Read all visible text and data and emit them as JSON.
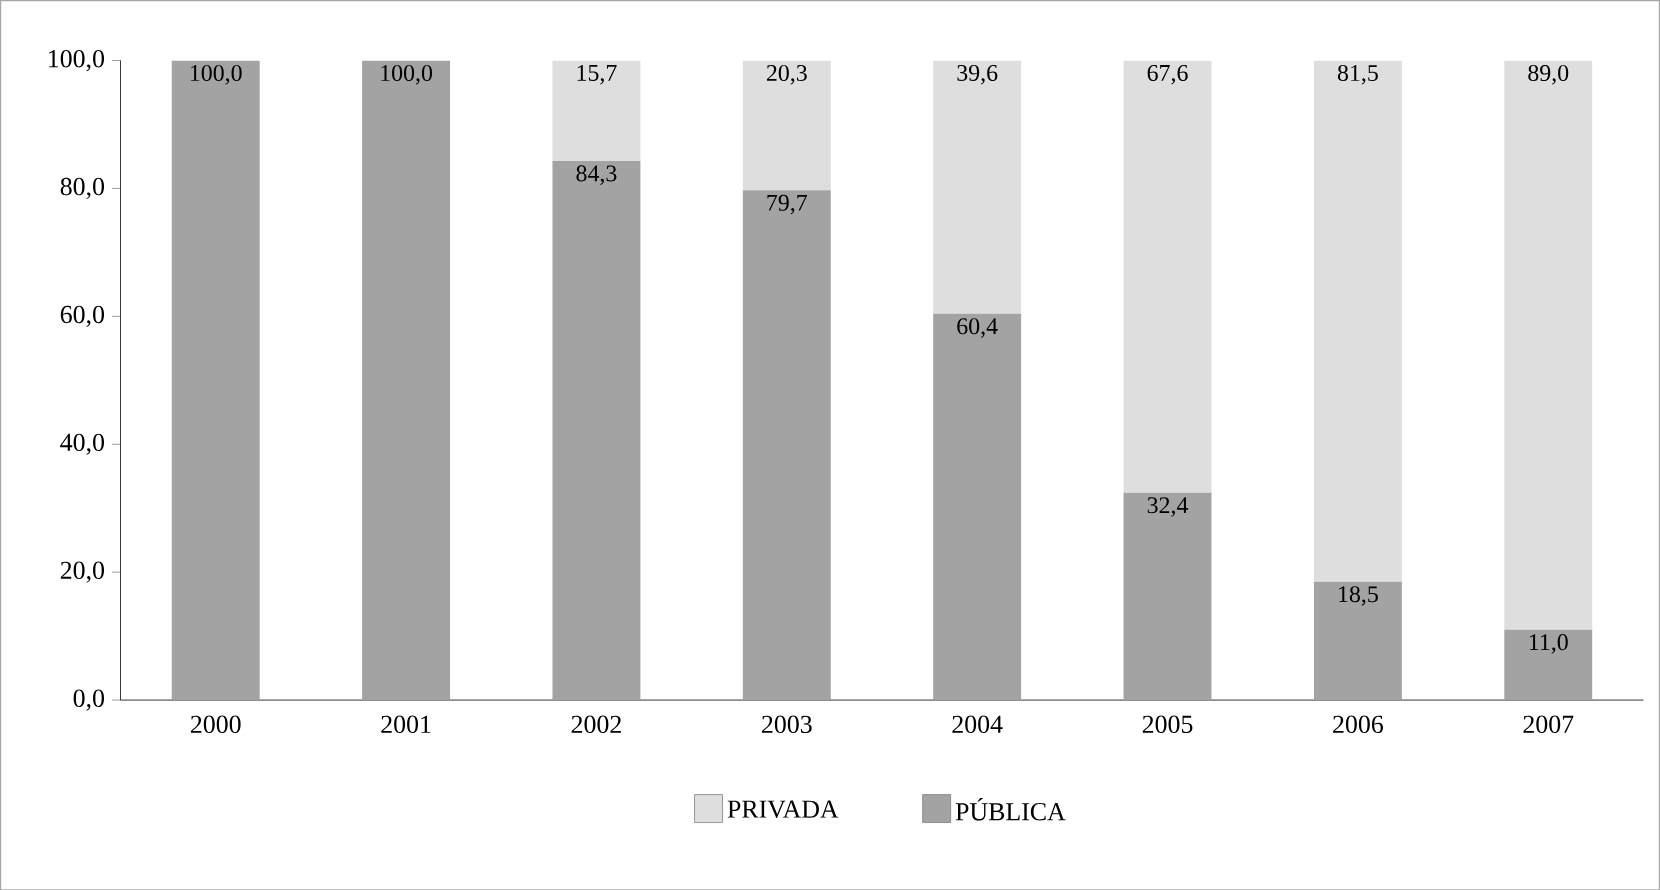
{
  "chart_data": {
    "type": "bar",
    "stacked": true,
    "categories": [
      "2000",
      "2001",
      "2002",
      "2003",
      "2004",
      "2005",
      "2006",
      "2007"
    ],
    "series": [
      {
        "name": "PÚBLICA",
        "color": "#a3a3a3",
        "values": [
          100.0,
          100.0,
          84.3,
          79.7,
          60.4,
          32.4,
          18.5,
          11.0
        ],
        "value_labels": [
          "100,0",
          "100,0",
          "84,3",
          "79,7",
          "60,4",
          "32,4",
          "18,5",
          "11,0"
        ]
      },
      {
        "name": "PRIVADA",
        "color": "#dedede",
        "values": [
          0,
          0,
          15.7,
          20.3,
          39.6,
          67.6,
          81.5,
          89.0
        ],
        "value_labels": [
          null,
          null,
          "15,7",
          "20,3",
          "39,6",
          "67,6",
          "81,5",
          "89,0"
        ]
      }
    ],
    "ylim": [
      0,
      100
    ],
    "yticks": [
      {
        "value": 0,
        "label": "0,0"
      },
      {
        "value": 20,
        "label": "20,0"
      },
      {
        "value": 40,
        "label": "40,0"
      },
      {
        "value": 60,
        "label": "60,0"
      },
      {
        "value": 80,
        "label": "80,0"
      },
      {
        "value": 100,
        "label": "100,0"
      }
    ],
    "grid": false,
    "legend": "bottom"
  }
}
